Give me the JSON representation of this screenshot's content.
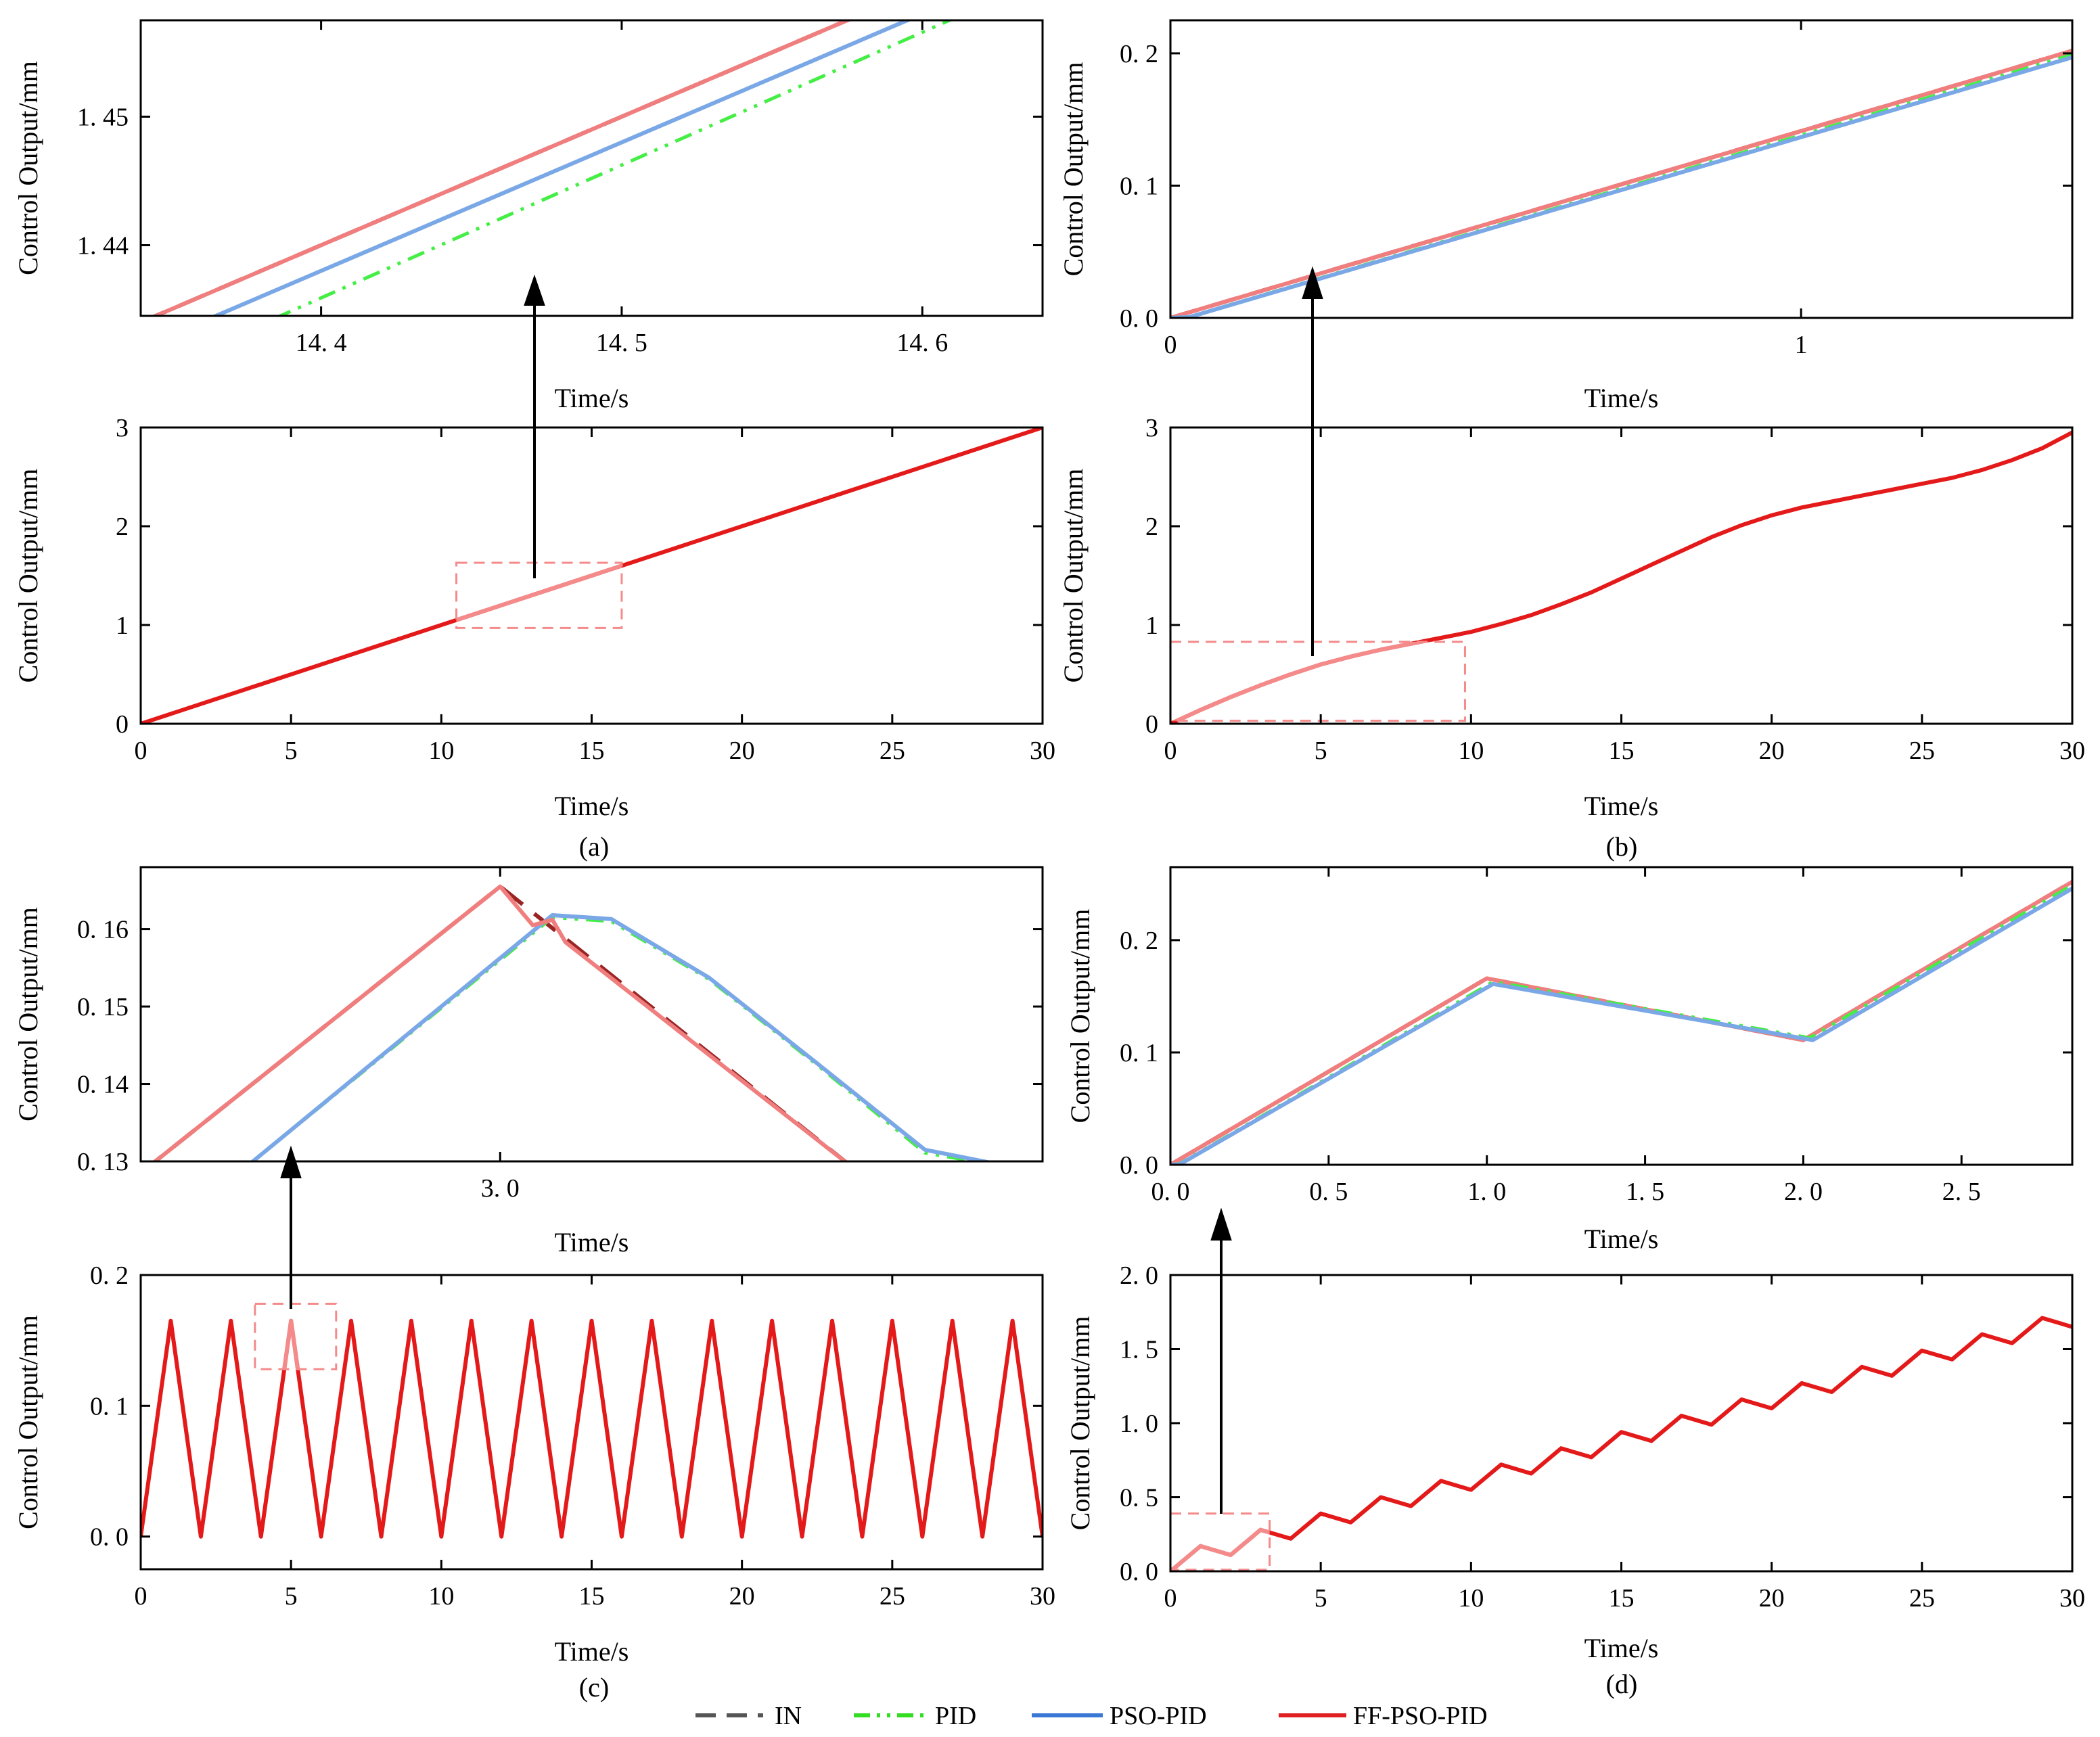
{
  "figure": {
    "panel_labels": [
      "(a)",
      "(b)",
      "(c)",
      "(d)"
    ]
  },
  "legend": {
    "items": [
      {
        "name": "IN",
        "label": "IN",
        "color": "#555555",
        "dash": "dash"
      },
      {
        "name": "PID",
        "label": "PID",
        "color": "#33dd22",
        "dash": "dashdot"
      },
      {
        "name": "PSO-PID",
        "label": "PSO-PID",
        "color": "#3a78d6",
        "dash": "solid"
      },
      {
        "name": "FF-PSO-PID",
        "label": "FF-PSO-PID",
        "color": "#e02020",
        "dash": "solid"
      }
    ]
  },
  "colors": {
    "in_zoom": "#9a2424",
    "pid_zoom": "#44ee44",
    "pso_zoom": "#7aa8e6",
    "ff_zoom": "#f07e7e",
    "main_line": "#e41a1a",
    "highlight": "#f48a8a"
  },
  "chart_data": [
    {
      "id": "a-zoom",
      "panel": "(a)",
      "type": "line",
      "xlabel": "Time/s",
      "ylabel": "Control Output/mm",
      "xlim": [
        14.34,
        14.64
      ],
      "ylim": [
        1.4345,
        1.4575
      ],
      "xticks": [
        14.4,
        14.5,
        14.6
      ],
      "xtick_labels": [
        "14. 4",
        "14. 5",
        "14. 6"
      ],
      "yticks": [
        1.44,
        1.45
      ],
      "ytick_labels": [
        "1. 44",
        "1. 45"
      ],
      "series": [
        {
          "name": "IN",
          "x": [
            14.34,
            14.64
          ],
          "y": [
            1.434,
            1.464
          ]
        },
        {
          "name": "FF-PSO-PID",
          "x": [
            14.34,
            14.64
          ],
          "y": [
            1.434,
            1.464
          ]
        },
        {
          "name": "PSO-PID",
          "x": [
            14.34,
            14.64
          ],
          "y": [
            1.432,
            1.462
          ]
        },
        {
          "name": "PID",
          "x": [
            14.34,
            14.64
          ],
          "y": [
            1.4297,
            1.4607
          ]
        }
      ]
    },
    {
      "id": "a-main",
      "panel": "(a)",
      "type": "line",
      "xlabel": "Time/s",
      "ylabel": "Control Output/mm",
      "xlim": [
        0,
        30
      ],
      "ylim": [
        0,
        3
      ],
      "xticks": [
        0,
        5,
        10,
        15,
        20,
        25,
        30
      ],
      "xtick_labels": [
        "0",
        "5",
        "10",
        "15",
        "20",
        "25",
        "30"
      ],
      "yticks": [
        0,
        1,
        2,
        3
      ],
      "ytick_labels": [
        "0",
        "1",
        "2",
        "3"
      ],
      "zoom_region": {
        "x": [
          10.5,
          16
        ],
        "y": [
          0.97,
          1.63
        ]
      },
      "series": [
        {
          "name": "FF-PSO-PID",
          "x": [
            0,
            30
          ],
          "y": [
            0,
            3
          ]
        }
      ]
    },
    {
      "id": "b-zoom",
      "panel": "(b)",
      "type": "line",
      "xlabel": "Time/s",
      "ylabel": "Control Output/mm",
      "xlim": [
        0,
        1.43
      ],
      "ylim": [
        0,
        0.225
      ],
      "xticks": [
        0,
        1
      ],
      "xtick_labels": [
        "0",
        "1"
      ],
      "yticks": [
        0,
        0.1,
        0.2
      ],
      "ytick_labels": [
        "0. 0",
        "0. 1",
        "0. 2"
      ],
      "series": [
        {
          "name": "IN",
          "x": [
            0,
            1.43
          ],
          "y": [
            0,
            0.202
          ]
        },
        {
          "name": "FF-PSO-PID",
          "x": [
            0,
            1.43
          ],
          "y": [
            0,
            0.202
          ]
        },
        {
          "name": "PID",
          "x": [
            0,
            0.03,
            1.43
          ],
          "y": [
            0,
            0.0008,
            0.199
          ]
        },
        {
          "name": "PSO-PID",
          "x": [
            0,
            0.03,
            1.43
          ],
          "y": [
            0,
            0.0006,
            0.197
          ]
        }
      ]
    },
    {
      "id": "b-main",
      "panel": "(b)",
      "type": "line",
      "xlabel": "Time/s",
      "ylabel": "Control Output/mm",
      "xlim": [
        0,
        30
      ],
      "ylim": [
        0,
        3
      ],
      "xticks": [
        0,
        5,
        10,
        15,
        20,
        25,
        30
      ],
      "xtick_labels": [
        "0",
        "5",
        "10",
        "15",
        "20",
        "25",
        "30"
      ],
      "yticks": [
        0,
        1,
        2,
        3
      ],
      "ytick_labels": [
        "0",
        "1",
        "2",
        "3"
      ],
      "zoom_region": {
        "x": [
          0,
          9.8
        ],
        "y": [
          0.03,
          0.83
        ]
      },
      "series": [
        {
          "name": "FF-PSO-PID",
          "x": [
            0,
            1,
            2,
            3,
            4,
            5,
            6,
            7,
            8,
            9,
            10,
            11,
            12,
            13,
            14,
            15,
            16,
            17,
            18,
            19,
            20,
            21,
            22,
            23,
            24,
            25,
            26,
            27,
            28,
            29,
            30
          ],
          "y": [
            0,
            0.14,
            0.27,
            0.39,
            0.5,
            0.6,
            0.68,
            0.75,
            0.81,
            0.87,
            0.93,
            1.01,
            1.1,
            1.21,
            1.33,
            1.47,
            1.61,
            1.75,
            1.89,
            2.01,
            2.11,
            2.19,
            2.25,
            2.31,
            2.37,
            2.43,
            2.49,
            2.57,
            2.67,
            2.79,
            2.95
          ]
        }
      ]
    },
    {
      "id": "c-zoom",
      "panel": "(c)",
      "type": "line",
      "xlabel": "Time/s",
      "ylabel": "Control Output/mm",
      "xlim": [
        2.45,
        3.83
      ],
      "ylim": [
        0.13,
        0.168
      ],
      "xticks": [
        3.0
      ],
      "xtick_labels": [
        "3. 0"
      ],
      "yticks": [
        0.13,
        0.14,
        0.15,
        0.16
      ],
      "ytick_labels": [
        "0. 13",
        "0. 14",
        "0. 15",
        "0. 16"
      ],
      "series": [
        {
          "name": "IN",
          "x": [
            2.45,
            3.0,
            3.55
          ],
          "y": [
            0.1285,
            0.1655,
            0.1285
          ]
        },
        {
          "name": "PID",
          "x": [
            2.6,
            3.08,
            3.17,
            3.32,
            3.48,
            3.65,
            3.83
          ],
          "y": [
            0.1285,
            0.1615,
            0.161,
            0.1535,
            0.1428,
            0.1311,
            0.1285
          ]
        },
        {
          "name": "PSO-PID",
          "x": [
            2.6,
            3.08,
            3.17,
            3.32,
            3.48,
            3.65,
            3.83
          ],
          "y": [
            0.1285,
            0.1618,
            0.1613,
            0.1537,
            0.143,
            0.1315,
            0.1285
          ]
        },
        {
          "name": "FF-PSO-PID",
          "x": [
            2.45,
            3.0,
            3.03,
            3.05,
            3.08,
            3.1,
            3.55
          ],
          "y": [
            0.1285,
            0.1655,
            0.1625,
            0.1605,
            0.1612,
            0.1583,
            0.1285
          ]
        }
      ]
    },
    {
      "id": "c-main",
      "panel": "(c)",
      "type": "line",
      "xlabel": "Time/s",
      "ylabel": "Control Output/mm",
      "xlim": [
        0,
        30
      ],
      "ylim": [
        -0.025,
        0.2
      ],
      "xticks": [
        0,
        5,
        10,
        15,
        20,
        25,
        30
      ],
      "xtick_labels": [
        "0",
        "5",
        "10",
        "15",
        "20",
        "25",
        "30"
      ],
      "yticks": [
        0,
        0.1,
        0.2
      ],
      "ytick_labels": [
        "0. 0",
        "0. 1",
        "0. 2"
      ],
      "zoom_region": {
        "x": [
          3.8,
          6.5
        ],
        "y": [
          0.128,
          0.178
        ]
      },
      "series": [
        {
          "name": "FF-PSO-PID",
          "x": [
            0,
            1,
            2,
            3,
            4,
            5,
            6,
            7,
            8,
            9,
            10,
            11,
            12,
            13,
            14,
            15,
            16,
            17,
            18,
            19,
            20,
            21,
            22,
            23,
            24,
            25,
            26,
            27,
            28,
            29,
            30
          ],
          "y": [
            0,
            0.165,
            0,
            0.165,
            0,
            0.165,
            0,
            0.165,
            0,
            0.165,
            0,
            0.165,
            0,
            0.165,
            0,
            0.165,
            0,
            0.165,
            0,
            0.165,
            0,
            0.165,
            0,
            0.165,
            0,
            0.165,
            0,
            0.165,
            0,
            0.165,
            0
          ]
        }
      ]
    },
    {
      "id": "d-zoom",
      "panel": "(d)",
      "type": "line",
      "xlabel": "Time/s",
      "ylabel": "Control Output/mm",
      "xlim": [
        0,
        2.85
      ],
      "ylim": [
        0,
        0.265
      ],
      "xticks": [
        0,
        0.5,
        1.0,
        1.5,
        2.0,
        2.5
      ],
      "xtick_labels": [
        "0. 0",
        "0. 5",
        "1. 0",
        "1. 5",
        "2. 0",
        "2. 5"
      ],
      "yticks": [
        0,
        0.1,
        0.2
      ],
      "ytick_labels": [
        "0. 0",
        "0. 1",
        "0. 2"
      ],
      "series": [
        {
          "name": "IN",
          "x": [
            0,
            1.0,
            2.0,
            2.85
          ],
          "y": [
            0,
            0.166,
            0.111,
            0.252
          ]
        },
        {
          "name": "FF-PSO-PID",
          "x": [
            0,
            1.0,
            2.0,
            2.85
          ],
          "y": [
            0,
            0.166,
            0.111,
            0.252
          ]
        },
        {
          "name": "PID",
          "x": [
            0,
            0.03,
            1.02,
            2.02,
            2.85
          ],
          "y": [
            0,
            0.001,
            0.163,
            0.113,
            0.249
          ]
        },
        {
          "name": "PSO-PID",
          "x": [
            0,
            0.03,
            1.02,
            2.03,
            2.85
          ],
          "y": [
            0,
            0.0005,
            0.161,
            0.111,
            0.246
          ]
        }
      ]
    },
    {
      "id": "d-main",
      "panel": "(d)",
      "type": "line",
      "xlabel": "Time/s",
      "ylabel": "Control Output/mm",
      "xlim": [
        0,
        30
      ],
      "ylim": [
        0,
        2.0
      ],
      "xticks": [
        0,
        5,
        10,
        15,
        20,
        25,
        30
      ],
      "xtick_labels": [
        "0",
        "5",
        "10",
        "15",
        "20",
        "25",
        "30"
      ],
      "yticks": [
        0,
        0.5,
        1.0,
        1.5,
        2.0
      ],
      "ytick_labels": [
        "0. 0",
        "0. 5",
        "1. 0",
        "1. 5",
        "2. 0"
      ],
      "zoom_region": {
        "x": [
          0,
          3.3
        ],
        "y": [
          0.01,
          0.39
        ]
      },
      "series": [
        {
          "name": "FF-PSO-PID",
          "x": [
            0,
            1,
            2,
            3,
            4,
            5,
            6,
            7,
            8,
            9,
            10,
            11,
            12,
            13,
            14,
            15,
            16,
            17,
            18,
            19,
            20,
            21,
            22,
            23,
            24,
            25,
            26,
            27,
            28,
            29,
            30
          ],
          "y": [
            0,
            0.17,
            0.11,
            0.28,
            0.22,
            0.39,
            0.33,
            0.5,
            0.44,
            0.61,
            0.55,
            0.72,
            0.66,
            0.83,
            0.77,
            0.94,
            0.88,
            1.05,
            0.99,
            1.16,
            1.1,
            1.27,
            1.21,
            1.38,
            1.32,
            1.49,
            1.43,
            1.6,
            1.54,
            1.71,
            1.65
          ]
        }
      ]
    }
  ]
}
